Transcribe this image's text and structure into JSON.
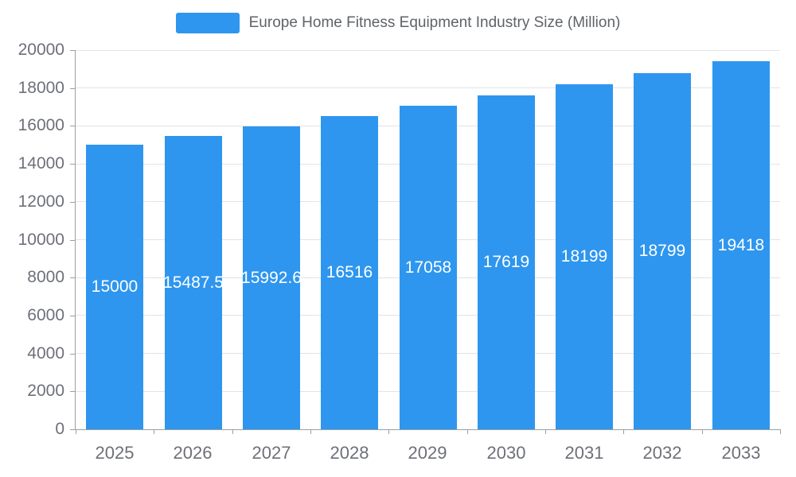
{
  "chart_data": {
    "type": "bar",
    "title": "Europe Home Fitness Equipment Industry Size (Million)",
    "categories": [
      "2025",
      "2026",
      "2027",
      "2028",
      "2029",
      "2030",
      "2031",
      "2032",
      "2033"
    ],
    "values": [
      15000,
      15487.5,
      15992.6,
      16516,
      17058,
      17619,
      18199,
      18799,
      19418
    ],
    "value_labels": [
      "15000",
      "15487.5",
      "15992.6",
      "16516",
      "17058",
      "17619",
      "18199",
      "18799",
      "19418"
    ],
    "xlabel": "",
    "ylabel": "",
    "ylim": [
      0,
      20000
    ],
    "y_ticks": [
      0,
      2000,
      4000,
      6000,
      8000,
      10000,
      12000,
      14000,
      16000,
      18000,
      20000
    ],
    "grid": true,
    "legend_position": "top",
    "colors": {
      "bar": "#2e96ef",
      "value_label": "#ffffff",
      "axis_text": "#6e7079",
      "title_text": "#5f6368",
      "gridline": "#e0e3e8",
      "axis_line": "#9aa0a6"
    }
  }
}
